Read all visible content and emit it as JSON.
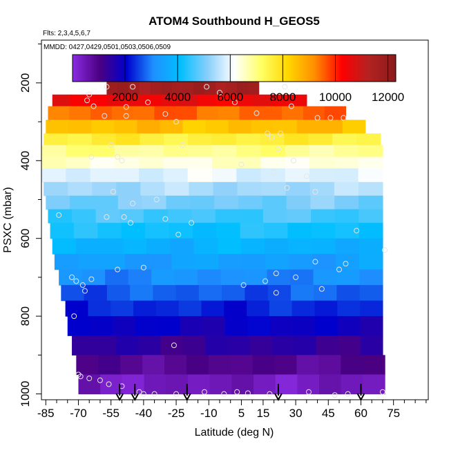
{
  "chart_data": {
    "type": "heatmap",
    "title": "ATOM4 Southbound H_GEOS5",
    "subtitle_flights": "Flts: 2,3,4,5,6,7",
    "subtitle_dates": "MMDD: 0427,0429,0501,0503,0506,0509",
    "xlabel": "Latitude (deg N)",
    "ylabel": "PSXC (mbar)",
    "xlim": [
      -87,
      91
    ],
    "ylim": [
      1015,
      90
    ],
    "y_reversed": true,
    "x_ticks": [
      -85,
      -70,
      -55,
      -40,
      -25,
      -10,
      5,
      15,
      30,
      45,
      60,
      75
    ],
    "y_ticks": [
      200,
      400,
      600,
      800,
      1000
    ],
    "colorbar": {
      "min": 0,
      "max": 12300,
      "ticks": [
        2000,
        4000,
        6000,
        8000,
        10000,
        12000
      ],
      "colors": [
        "#8a2be2",
        "#4b0082",
        "#0000cd",
        "#1e90ff",
        "#00bfff",
        "#87cefa",
        "#ffffff",
        "#ffff66",
        "#ffd700",
        "#ff8c00",
        "#ff0000",
        "#b22222",
        "#8b1a1a"
      ]
    },
    "bands": [
      {
        "p_top": 170,
        "p_bot": 230,
        "x_start": -57,
        "x_end": 13,
        "value": 11700
      },
      {
        "p_top": 230,
        "p_bot": 260,
        "x_start": -82,
        "x_end": 35,
        "value": 10500
      },
      {
        "p_top": 260,
        "p_bot": 295,
        "x_start": -84,
        "x_end": 53,
        "value": 9500
      },
      {
        "p_top": 295,
        "p_bot": 330,
        "x_start": -85,
        "x_end": 62,
        "value": 8500
      },
      {
        "p_top": 330,
        "p_bot": 360,
        "x_start": -86,
        "x_end": 69,
        "value": 7600
      },
      {
        "p_top": 360,
        "p_bot": 390,
        "x_start": -87,
        "x_end": 70,
        "value": 6900
      },
      {
        "p_top": 390,
        "p_bot": 420,
        "x_start": -87,
        "x_end": 70,
        "value": 6400
      },
      {
        "p_top": 420,
        "p_bot": 455,
        "x_start": -87,
        "x_end": 70,
        "value": 5900
      },
      {
        "p_top": 455,
        "p_bot": 490,
        "x_start": -86,
        "x_end": 70,
        "value": 5400
      },
      {
        "p_top": 490,
        "p_bot": 525,
        "x_start": -85,
        "x_end": 70,
        "value": 5000
      },
      {
        "p_top": 525,
        "p_bot": 560,
        "x_start": -84,
        "x_end": 70,
        "value": 4600
      },
      {
        "p_top": 560,
        "p_bot": 600,
        "x_start": -83,
        "x_end": 70,
        "value": 4200
      },
      {
        "p_top": 600,
        "p_bot": 640,
        "x_start": -82,
        "x_end": 70,
        "value": 3800
      },
      {
        "p_top": 640,
        "p_bot": 680,
        "x_start": -81,
        "x_end": 70,
        "value": 3400
      },
      {
        "p_top": 680,
        "p_bot": 720,
        "x_start": -79,
        "x_end": 70,
        "value": 3100
      },
      {
        "p_top": 720,
        "p_bot": 760,
        "x_start": -78,
        "x_end": 70,
        "value": 2700
      },
      {
        "p_top": 760,
        "p_bot": 800,
        "x_start": -76,
        "x_end": 70,
        "value": 2300
      },
      {
        "p_top": 800,
        "p_bot": 850,
        "x_start": -75,
        "x_end": 70,
        "value": 1900
      },
      {
        "p_top": 850,
        "p_bot": 900,
        "x_start": -73,
        "x_end": 70,
        "value": 1400
      },
      {
        "p_top": 900,
        "p_bot": 950,
        "x_start": -71,
        "x_end": 71,
        "value": 900
      },
      {
        "p_top": 950,
        "p_bot": 1000,
        "x_start": -70,
        "x_end": 71,
        "value": 400
      }
    ],
    "observations": [
      [
        -65,
        230
      ],
      [
        -63,
        260
      ],
      [
        -66,
        245
      ],
      [
        -57,
        210
      ],
      [
        -45,
        210
      ],
      [
        -38,
        250
      ],
      [
        -48,
        262
      ],
      [
        -58,
        285
      ],
      [
        -48,
        285
      ],
      [
        -30,
        280
      ],
      [
        -25,
        300
      ],
      [
        -11,
        210
      ],
      [
        -5,
        225
      ],
      [
        2,
        250
      ],
      [
        12,
        278
      ],
      [
        25,
        210
      ],
      [
        28,
        260
      ],
      [
        40,
        290
      ],
      [
        46,
        290
      ],
      [
        52,
        290
      ],
      [
        17,
        330
      ],
      [
        19,
        340
      ],
      [
        23,
        330
      ],
      [
        22,
        370
      ],
      [
        -22,
        360
      ],
      [
        -55,
        360
      ],
      [
        -64,
        390
      ],
      [
        -50,
        400
      ],
      [
        -52,
        390
      ],
      [
        5,
        410
      ],
      [
        20,
        430
      ],
      [
        29,
        400
      ],
      [
        35,
        440
      ],
      [
        26,
        470
      ],
      [
        39,
        480
      ],
      [
        -54,
        480
      ],
      [
        -45,
        510
      ],
      [
        -34,
        500
      ],
      [
        -79,
        540
      ],
      [
        -57,
        545
      ],
      [
        -49,
        545
      ],
      [
        -46,
        560
      ],
      [
        -30,
        550
      ],
      [
        -24,
        590
      ],
      [
        -18,
        560
      ],
      [
        58,
        580
      ],
      [
        71,
        630
      ],
      [
        -73,
        700
      ],
      [
        -71,
        710
      ],
      [
        -68,
        720
      ],
      [
        -64,
        705
      ],
      [
        -67,
        735
      ],
      [
        -52,
        680
      ],
      [
        -40,
        675
      ],
      [
        6,
        720
      ],
      [
        16,
        710
      ],
      [
        21,
        690
      ],
      [
        21,
        740
      ],
      [
        30,
        700
      ],
      [
        39,
        660
      ],
      [
        42,
        730
      ],
      [
        50,
        680
      ],
      [
        53,
        665
      ],
      [
        -72,
        800
      ],
      [
        -26,
        875
      ],
      [
        -70,
        950
      ],
      [
        -69,
        955
      ],
      [
        -65,
        960
      ],
      [
        -60,
        965
      ],
      [
        -56,
        975
      ],
      [
        -50,
        980
      ],
      [
        -42,
        995
      ],
      [
        -40,
        1000
      ],
      [
        -35,
        1000
      ],
      [
        -25,
        1000
      ],
      [
        -12,
        995
      ],
      [
        -3,
        1000
      ],
      [
        3,
        995
      ],
      [
        8,
        998
      ],
      [
        18,
        1000
      ],
      [
        36,
        995
      ],
      [
        48,
        1003
      ],
      [
        54,
        1000
      ],
      [
        70,
        995
      ]
    ],
    "flight_arrows_lat": [
      -51,
      -44,
      -20,
      22,
      60
    ]
  }
}
